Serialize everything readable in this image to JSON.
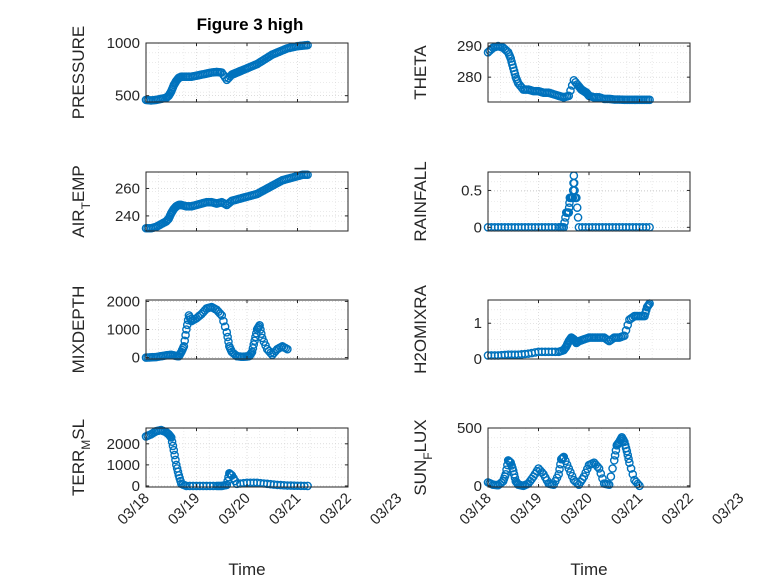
{
  "title": "Figure 3 high",
  "colors": {
    "marker": "#0072BD",
    "axis": "#262626",
    "grid": "#c8c8c8"
  },
  "x_tick_labels": [
    "03/18",
    "03/19",
    "03/20",
    "03/21",
    "03/22",
    "03/23"
  ],
  "xlabel": "Time",
  "chart_data": [
    {
      "type": "scatter",
      "ylabel": "PRESSURE",
      "ylabel_sub": "",
      "ylabel_rest": "",
      "xlim": [
        0,
        4
      ],
      "ylim": [
        440,
        1000
      ],
      "yticks": [
        500,
        1000
      ],
      "grid": true,
      "title": "Figure 3 high",
      "x": [
        0,
        0.1,
        0.2,
        0.3,
        0.4,
        0.45,
        0.5,
        0.55,
        0.6,
        0.65,
        0.7,
        0.8,
        0.9,
        1.0,
        1.1,
        1.2,
        1.3,
        1.4,
        1.5,
        1.6,
        1.7,
        1.75,
        1.8,
        1.85,
        1.9,
        2.0,
        2.1,
        2.2,
        2.3,
        2.4,
        2.5,
        2.6,
        2.7,
        2.8,
        2.9,
        3.0,
        3.1,
        3.2
      ],
      "y": [
        460,
        455,
        460,
        470,
        480,
        500,
        540,
        600,
        640,
        670,
        680,
        680,
        680,
        690,
        700,
        710,
        720,
        725,
        720,
        650,
        700,
        710,
        720,
        730,
        740,
        760,
        780,
        800,
        830,
        860,
        890,
        910,
        930,
        950,
        960,
        970,
        975,
        980
      ]
    },
    {
      "type": "scatter",
      "ylabel": "THETA",
      "ylabel_sub": "",
      "ylabel_rest": "",
      "xlim": [
        0,
        4
      ],
      "ylim": [
        272,
        291
      ],
      "yticks": [
        280,
        290
      ],
      "grid": true,
      "x": [
        0,
        0.1,
        0.2,
        0.3,
        0.4,
        0.45,
        0.5,
        0.55,
        0.6,
        0.7,
        0.8,
        0.9,
        1.0,
        1.1,
        1.2,
        1.3,
        1.4,
        1.5,
        1.6,
        1.7,
        1.8,
        1.85,
        1.9,
        1.95,
        2.0,
        2.1,
        2.2,
        2.3,
        2.4,
        2.5,
        2.6,
        2.7,
        2.8,
        2.9,
        3.0,
        3.1,
        3.2
      ],
      "y": [
        288,
        289.5,
        290,
        289.5,
        288,
        286,
        283,
        280,
        278,
        276,
        276,
        275.5,
        275.5,
        275,
        275,
        274.5,
        274,
        273.5,
        274,
        279,
        277,
        276,
        275.5,
        275,
        274,
        273.5,
        273.5,
        273,
        273,
        272.8,
        272.8,
        272.7,
        272.7,
        272.7,
        272.7,
        272.7,
        272.7
      ]
    },
    {
      "type": "scatter",
      "ylabel": "AIR",
      "ylabel_sub": "T",
      "ylabel_rest": "EMP",
      "xlim": [
        0,
        4
      ],
      "ylim": [
        229,
        272
      ],
      "yticks": [
        240,
        260
      ],
      "grid": true,
      "x": [
        0,
        0.1,
        0.2,
        0.3,
        0.4,
        0.45,
        0.5,
        0.55,
        0.6,
        0.65,
        0.7,
        0.8,
        0.9,
        1.0,
        1.1,
        1.2,
        1.3,
        1.4,
        1.5,
        1.6,
        1.7,
        1.8,
        1.9,
        2.0,
        2.1,
        2.2,
        2.3,
        2.4,
        2.5,
        2.6,
        2.7,
        2.8,
        2.9,
        3.0,
        3.1,
        3.2
      ],
      "y": [
        231,
        231,
        232,
        234,
        236,
        238,
        242,
        245,
        247,
        248,
        248,
        247,
        247,
        248,
        249,
        250,
        250,
        249,
        250,
        248,
        251,
        252,
        253,
        254,
        255,
        256,
        258,
        260,
        262,
        264,
        266,
        267,
        268,
        269,
        270,
        270
      ]
    },
    {
      "type": "scatter",
      "ylabel": "RAINFALL",
      "ylabel_sub": "",
      "ylabel_rest": "",
      "xlim": [
        0,
        4
      ],
      "ylim": [
        -0.05,
        0.75
      ],
      "yticks": [
        0,
        0.5
      ],
      "grid": true,
      "x": [
        0,
        0.2,
        0.4,
        0.6,
        0.8,
        1.0,
        1.2,
        1.4,
        1.5,
        1.55,
        1.6,
        1.62,
        1.65,
        1.68,
        1.7,
        1.72,
        1.75,
        1.8,
        2.0,
        2.2,
        2.4,
        2.6,
        2.8,
        3.0,
        3.2
      ],
      "y": [
        0,
        0,
        0,
        0,
        0,
        0,
        0,
        0,
        0,
        0.2,
        0.2,
        0.4,
        0.4,
        0.4,
        0.7,
        0.4,
        0.4,
        0,
        0,
        0,
        0,
        0,
        0,
        0,
        0
      ]
    },
    {
      "type": "scatter",
      "ylabel": "MIXDEPTH",
      "ylabel_sub": "",
      "ylabel_rest": "",
      "xlim": [
        0,
        4
      ],
      "ylim": [
        -50,
        2050
      ],
      "yticks": [
        0,
        1000,
        2000
      ],
      "grid": true,
      "x": [
        0,
        0.1,
        0.2,
        0.3,
        0.4,
        0.5,
        0.6,
        0.65,
        0.7,
        0.75,
        0.8,
        0.85,
        0.9,
        1.0,
        1.1,
        1.2,
        1.3,
        1.4,
        1.5,
        1.6,
        1.65,
        1.7,
        1.8,
        1.9,
        2.0,
        2.05,
        2.1,
        2.15,
        2.2,
        2.25,
        2.3,
        2.4,
        2.5,
        2.6,
        2.7,
        2.8
      ],
      "y": [
        0,
        10,
        20,
        50,
        80,
        100,
        60,
        50,
        200,
        400,
        1000,
        1500,
        1300,
        1400,
        1550,
        1750,
        1800,
        1700,
        1500,
        900,
        400,
        200,
        50,
        30,
        40,
        60,
        200,
        600,
        1000,
        1150,
        700,
        300,
        100,
        300,
        400,
        300
      ]
    },
    {
      "type": "scatter",
      "ylabel": "H2OMIXRA",
      "ylabel_sub": "",
      "ylabel_rest": "",
      "xlim": [
        0,
        4
      ],
      "ylim": [
        0,
        1.65
      ],
      "yticks": [
        0,
        1
      ],
      "grid": true,
      "x": [
        0,
        0.2,
        0.4,
        0.6,
        0.8,
        1.0,
        1.2,
        1.4,
        1.5,
        1.55,
        1.6,
        1.65,
        1.7,
        1.75,
        1.8,
        1.9,
        2.0,
        2.1,
        2.2,
        2.3,
        2.4,
        2.5,
        2.6,
        2.7,
        2.8,
        2.9,
        3.0,
        3.1,
        3.15,
        3.2
      ],
      "y": [
        0.1,
        0.1,
        0.12,
        0.12,
        0.15,
        0.2,
        0.2,
        0.2,
        0.25,
        0.35,
        0.5,
        0.6,
        0.55,
        0.45,
        0.5,
        0.55,
        0.6,
        0.6,
        0.6,
        0.6,
        0.5,
        0.6,
        0.6,
        0.65,
        1.1,
        1.2,
        1.2,
        1.2,
        1.45,
        1.55
      ]
    },
    {
      "type": "scatter",
      "ylabel": "TERR",
      "ylabel_sub": "M",
      "ylabel_rest": "SL",
      "xlim": [
        0,
        4
      ],
      "ylim": [
        -50,
        2750
      ],
      "yticks": [
        0,
        1000,
        2000
      ],
      "grid": true,
      "x": [
        0,
        0.1,
        0.2,
        0.3,
        0.4,
        0.45,
        0.5,
        0.55,
        0.6,
        0.65,
        0.7,
        0.8,
        1.0,
        1.2,
        1.4,
        1.5,
        1.6,
        1.65,
        1.7,
        1.8,
        2.0,
        2.2,
        2.4,
        2.6,
        2.8,
        3.0,
        3.2
      ],
      "y": [
        2350,
        2450,
        2600,
        2650,
        2550,
        2450,
        2300,
        1700,
        1000,
        500,
        100,
        0,
        0,
        0,
        0,
        0,
        50,
        600,
        500,
        100,
        150,
        150,
        100,
        50,
        20,
        10,
        0
      ]
    },
    {
      "type": "scatter",
      "ylabel": "SUN",
      "ylabel_sub": "F",
      "ylabel_rest": "LUX",
      "xlim": [
        0,
        4
      ],
      "ylim": [
        -10,
        500
      ],
      "yticks": [
        0,
        500
      ],
      "grid": true,
      "x": [
        0,
        0.1,
        0.2,
        0.3,
        0.35,
        0.4,
        0.45,
        0.5,
        0.55,
        0.6,
        0.7,
        0.8,
        0.9,
        1.0,
        1.1,
        1.2,
        1.3,
        1.4,
        1.45,
        1.5,
        1.6,
        1.7,
        1.8,
        1.9,
        2.0,
        2.1,
        2.2,
        2.3,
        2.4,
        2.5,
        2.55,
        2.6,
        2.65,
        2.7,
        2.75,
        2.8,
        2.9,
        3.0
      ],
      "y": [
        30,
        10,
        5,
        40,
        100,
        220,
        200,
        130,
        40,
        10,
        0,
        20,
        80,
        150,
        100,
        20,
        10,
        100,
        230,
        250,
        150,
        50,
        10,
        80,
        180,
        200,
        150,
        20,
        10,
        220,
        350,
        380,
        420,
        380,
        300,
        200,
        50,
        0
      ]
    }
  ]
}
